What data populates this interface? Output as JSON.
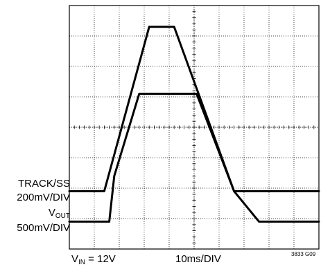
{
  "chart_data": {
    "type": "line",
    "grid": true,
    "divisions": {
      "x": 10,
      "y": 8
    },
    "x_per_div_ms": 10,
    "x_range_ms": [
      0,
      100
    ],
    "series": [
      {
        "name": "TRACK/SS",
        "scale_mV_per_div": 200,
        "points": [
          [
            0,
            0
          ],
          [
            14,
            0
          ],
          [
            32,
            5.4
          ],
          [
            42,
            5.4
          ],
          [
            66,
            0
          ],
          [
            100,
            0
          ]
        ]
      },
      {
        "name": "VOUT",
        "scale_mV_per_div": 500,
        "points": [
          [
            0,
            -1
          ],
          [
            16,
            -1
          ],
          [
            18,
            0.5
          ],
          [
            28,
            3.2
          ],
          [
            51,
            3.2
          ],
          [
            66,
            0
          ],
          [
            76,
            -1
          ],
          [
            100,
            -1
          ]
        ]
      }
    ],
    "labels": {
      "track_name": "TRACK/SS",
      "track_scale": "200mV/DIV",
      "vout_name_main": "V",
      "vout_name_sub": "OUT",
      "vout_scale": "500mV/DIV",
      "vin_main": "V",
      "vin_sub": "IN",
      "vin_value": " = 12V",
      "time_scale": "10ms/DIV",
      "figure_id": "3833 G09"
    }
  }
}
